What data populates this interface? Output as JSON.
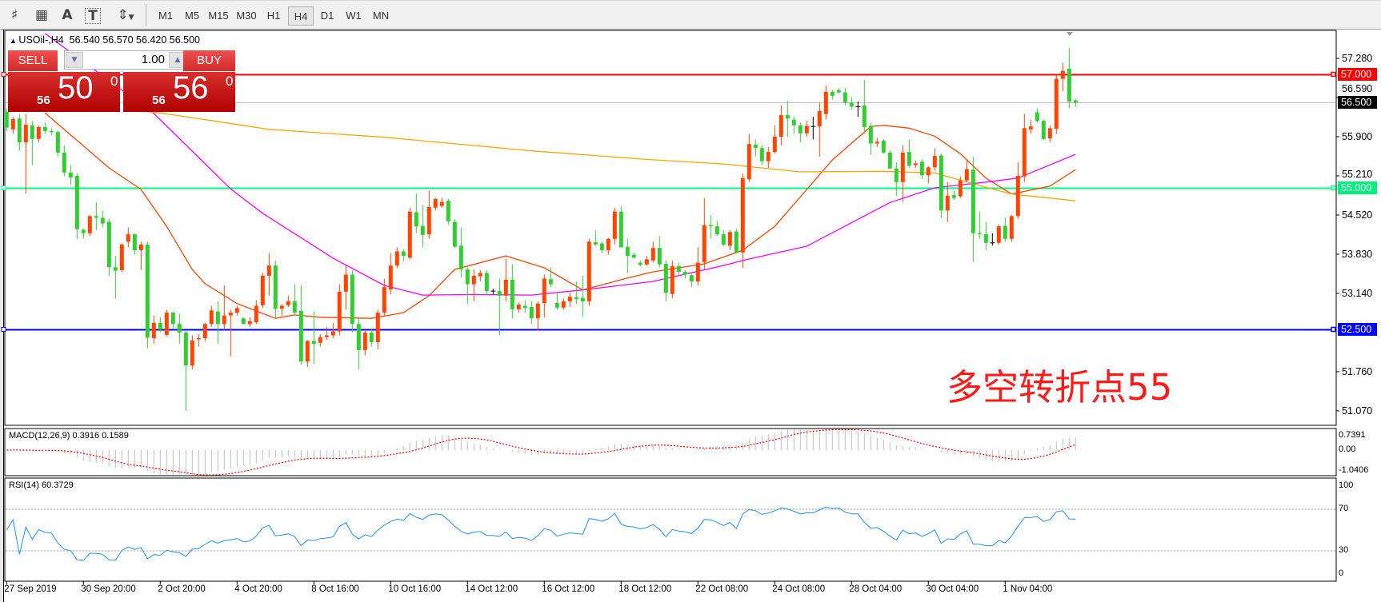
{
  "toolbar": {
    "icons": [
      "chart-lines-icon",
      "grid-icon",
      "text-icon",
      "text-label-icon",
      "arrows-icon"
    ],
    "icon_glyphs": [
      "♯",
      "▦",
      "A",
      "T",
      "⇕"
    ],
    "timeframes": [
      "M1",
      "M5",
      "M15",
      "M30",
      "H1",
      "H4",
      "D1",
      "W1",
      "MN"
    ],
    "active_timeframe": "H4"
  },
  "chart_title": "USOil-,H4  56.540 56.570 56.420 56.500",
  "trade_panel": {
    "sell_label": "SELL",
    "buy_label": "BUY",
    "lot": "1.00",
    "sell_price": {
      "small": "56",
      "big": "50",
      "sup": "0"
    },
    "buy_price": {
      "small": "56",
      "big": "56",
      "sup": "0"
    }
  },
  "annotation": "多空转折点55",
  "chart_data": {
    "type": "candlestick",
    "symbol": "USOil-",
    "timeframe": "H4",
    "ohlc_last": {
      "open": 56.54,
      "high": 56.57,
      "low": 56.42,
      "close": 56.5
    },
    "ylim": [
      50.9,
      57.75
    ],
    "y_ticks": [
      "57.280",
      "56.590",
      "55.900",
      "55.210",
      "54.520",
      "53.830",
      "53.140",
      "51.760",
      "51.070"
    ],
    "x_ticks": [
      "27 Sep 2019",
      "30 Sep 20:00",
      "2 Oct 20:00",
      "4 Oct 20:00",
      "8 Oct 16:00",
      "10 Oct 16:00",
      "14 Oct 12:00",
      "16 Oct 12:00",
      "18 Oct 12:00",
      "22 Oct 08:00",
      "24 Oct 08:00",
      "28 Oct 04:00",
      "30 Oct 04:00",
      "1 Nov 04:00"
    ],
    "x_tick_every_bars": 12,
    "colors": {
      "up": "#ff4500",
      "down": "#32cd32",
      "doji": "#000000"
    },
    "horizontal_lines": [
      {
        "value": 57.0,
        "label": "57.000",
        "color": "#ff0000"
      },
      {
        "value": 56.5,
        "label": "56.500",
        "color": "#000000",
        "line_color": "#c0c0c0"
      },
      {
        "value": 55.0,
        "label": "55.000",
        "color": "#00ff7f"
      },
      {
        "value": 52.5,
        "label": "52.500",
        "color": "#0000ff"
      }
    ],
    "candles": [
      [
        56.34,
        56.4,
        56.0,
        56.06
      ],
      [
        56.03,
        56.25,
        55.95,
        56.21
      ],
      [
        56.22,
        56.3,
        55.65,
        55.8
      ],
      [
        55.8,
        56.3,
        54.9,
        56.11
      ],
      [
        56.1,
        56.18,
        55.4,
        55.86
      ],
      [
        55.86,
        56.1,
        55.8,
        56.07
      ],
      [
        56.07,
        56.15,
        55.95,
        56.0
      ],
      [
        56.0,
        56.05,
        55.92,
        55.98
      ],
      [
        55.98,
        56.0,
        55.55,
        55.62
      ],
      [
        55.62,
        55.75,
        55.2,
        55.27
      ],
      [
        55.27,
        55.4,
        55.05,
        55.18
      ],
      [
        55.21,
        55.25,
        54.1,
        54.27
      ],
      [
        54.26,
        54.28,
        54.1,
        54.2
      ],
      [
        54.2,
        54.52,
        54.15,
        54.5
      ],
      [
        54.5,
        54.75,
        54.25,
        54.47
      ],
      [
        54.47,
        54.6,
        54.3,
        54.37
      ],
      [
        54.4,
        54.45,
        53.45,
        53.6
      ],
      [
        53.6,
        53.8,
        53.05,
        53.54
      ],
      [
        53.55,
        54.02,
        53.52,
        54.0
      ],
      [
        54.05,
        54.3,
        53.95,
        54.18
      ],
      [
        54.18,
        54.2,
        53.82,
        53.9
      ],
      [
        53.9,
        54.05,
        53.55,
        54.0
      ],
      [
        54.0,
        54.05,
        52.17,
        52.36
      ],
      [
        52.35,
        52.75,
        52.25,
        52.62
      ],
      [
        52.62,
        52.72,
        52.45,
        52.5
      ],
      [
        52.41,
        52.85,
        52.38,
        52.8
      ],
      [
        52.8,
        52.82,
        52.5,
        52.6
      ],
      [
        52.6,
        52.78,
        52.25,
        52.45
      ],
      [
        52.45,
        52.48,
        51.07,
        51.87
      ],
      [
        51.87,
        52.4,
        51.8,
        52.31
      ],
      [
        52.33,
        52.42,
        52.2,
        52.35
      ],
      [
        52.35,
        52.62,
        52.3,
        52.6
      ],
      [
        52.6,
        52.92,
        52.55,
        52.84
      ],
      [
        52.82,
        53.0,
        52.25,
        52.6
      ],
      [
        52.6,
        53.28,
        52.5,
        52.75
      ],
      [
        52.75,
        52.85,
        52.03,
        52.8
      ],
      [
        52.8,
        52.92,
        52.75,
        52.88
      ],
      [
        52.7,
        52.72,
        52.6,
        52.6
      ],
      [
        52.6,
        52.72,
        52.55,
        52.65
      ],
      [
        52.63,
        53.02,
        52.6,
        52.92
      ],
      [
        52.93,
        53.5,
        52.88,
        53.45
      ],
      [
        53.45,
        53.85,
        53.1,
        53.63
      ],
      [
        53.63,
        53.72,
        52.7,
        52.87
      ],
      [
        52.87,
        52.95,
        52.75,
        52.92
      ],
      [
        52.93,
        53.1,
        52.9,
        53.0
      ],
      [
        53.0,
        53.3,
        52.75,
        52.8
      ],
      [
        52.83,
        53.28,
        51.88,
        51.94
      ],
      [
        51.94,
        52.32,
        51.84,
        52.3
      ],
      [
        52.3,
        52.82,
        51.9,
        52.25
      ],
      [
        52.27,
        52.42,
        52.2,
        52.37
      ],
      [
        52.37,
        52.55,
        52.32,
        52.4
      ],
      [
        52.4,
        52.62,
        52.35,
        52.47
      ],
      [
        52.47,
        53.3,
        52.4,
        53.17
      ],
      [
        53.17,
        53.65,
        52.85,
        53.47
      ],
      [
        53.47,
        53.55,
        52.45,
        52.6
      ],
      [
        52.6,
        52.7,
        51.8,
        52.14
      ],
      [
        52.14,
        52.5,
        52.05,
        52.45
      ],
      [
        52.45,
        52.52,
        52.2,
        52.28
      ],
      [
        52.28,
        52.85,
        52.15,
        52.8
      ],
      [
        52.8,
        53.4,
        52.75,
        53.25
      ],
      [
        53.21,
        53.85,
        53.12,
        53.63
      ],
      [
        53.63,
        53.95,
        53.58,
        53.88
      ],
      [
        53.88,
        53.92,
        53.7,
        53.8
      ],
      [
        53.77,
        54.65,
        53.74,
        54.58
      ],
      [
        54.57,
        54.9,
        54.2,
        54.32
      ],
      [
        54.33,
        54.7,
        53.95,
        54.17
      ],
      [
        54.18,
        54.95,
        54.1,
        54.66
      ],
      [
        54.65,
        54.82,
        54.6,
        54.8
      ],
      [
        54.68,
        54.82,
        54.65,
        54.75
      ],
      [
        54.77,
        54.8,
        54.35,
        54.41
      ],
      [
        54.4,
        54.45,
        53.94,
        53.96
      ],
      [
        53.98,
        54.3,
        53.42,
        53.56
      ],
      [
        53.56,
        53.6,
        52.95,
        53.3
      ],
      [
        53.3,
        53.56,
        53.0,
        53.45
      ],
      [
        53.44,
        53.55,
        53.35,
        53.5
      ],
      [
        53.5,
        53.55,
        53.1,
        53.18
      ],
      [
        53.18,
        53.22,
        53.12,
        53.18
      ],
      [
        53.18,
        53.4,
        52.4,
        53.1
      ],
      [
        53.1,
        53.75,
        53.0,
        53.38
      ],
      [
        53.38,
        53.65,
        52.7,
        52.86
      ],
      [
        52.86,
        52.98,
        52.8,
        52.94
      ],
      [
        52.92,
        53.02,
        52.8,
        52.88
      ],
      [
        52.9,
        53.0,
        52.6,
        52.7
      ],
      [
        52.7,
        53.0,
        52.48,
        52.96
      ],
      [
        52.97,
        53.47,
        52.72,
        53.4
      ],
      [
        53.39,
        53.6,
        53.25,
        53.3
      ],
      [
        52.97,
        53.15,
        52.85,
        52.89
      ],
      [
        52.89,
        53.05,
        52.85,
        53.0
      ],
      [
        53.0,
        53.15,
        52.9,
        53.08
      ],
      [
        53.07,
        53.35,
        52.95,
        53.04
      ],
      [
        53.06,
        53.45,
        52.73,
        53.0
      ],
      [
        53.0,
        54.1,
        52.92,
        54.05
      ],
      [
        54.04,
        54.25,
        53.98,
        54.0
      ],
      [
        54.02,
        54.05,
        53.85,
        53.9
      ],
      [
        53.9,
        54.12,
        53.82,
        54.1
      ],
      [
        54.1,
        54.65,
        54.0,
        54.58
      ],
      [
        54.58,
        54.68,
        53.95,
        53.95
      ],
      [
        53.96,
        54.1,
        53.5,
        53.8
      ],
      [
        53.82,
        53.86,
        53.75,
        53.77
      ],
      [
        53.68,
        53.72,
        53.62,
        53.64
      ],
      [
        53.65,
        53.8,
        53.62,
        53.74
      ],
      [
        53.72,
        54.05,
        53.68,
        53.94
      ],
      [
        53.94,
        54.15,
        53.6,
        53.65
      ],
      [
        53.66,
        53.72,
        53.0,
        53.15
      ],
      [
        53.13,
        53.72,
        53.05,
        53.62
      ],
      [
        53.62,
        53.68,
        53.45,
        53.52
      ],
      [
        53.52,
        53.55,
        53.4,
        53.47
      ],
      [
        53.46,
        53.5,
        53.25,
        53.35
      ],
      [
        53.35,
        53.95,
        53.28,
        53.68
      ],
      [
        53.69,
        54.82,
        53.55,
        54.34
      ],
      [
        54.34,
        54.52,
        54.1,
        54.32
      ],
      [
        54.32,
        54.42,
        54.15,
        54.18
      ],
      [
        54.18,
        54.25,
        53.97,
        54.0
      ],
      [
        53.98,
        54.25,
        53.9,
        54.22
      ],
      [
        54.23,
        54.28,
        53.85,
        53.86
      ],
      [
        53.86,
        55.25,
        53.59,
        55.17
      ],
      [
        55.15,
        55.95,
        55.1,
        55.77
      ],
      [
        55.76,
        55.85,
        55.55,
        55.7
      ],
      [
        55.7,
        55.75,
        55.4,
        55.47
      ],
      [
        55.47,
        55.72,
        55.35,
        55.63
      ],
      [
        55.63,
        56.1,
        55.6,
        55.9
      ],
      [
        55.9,
        56.45,
        55.75,
        56.28
      ],
      [
        56.28,
        56.53,
        55.9,
        56.22
      ],
      [
        56.2,
        56.25,
        55.95,
        56.1
      ],
      [
        56.1,
        56.15,
        55.8,
        55.96
      ],
      [
        55.96,
        56.18,
        55.9,
        56.09
      ],
      [
        56.08,
        56.25,
        55.85,
        56.08
      ],
      [
        56.08,
        56.5,
        55.55,
        56.35
      ],
      [
        56.3,
        56.8,
        56.2,
        56.69
      ],
      [
        56.69,
        56.72,
        56.55,
        56.62
      ],
      [
        56.72,
        56.76,
        56.66,
        56.68
      ],
      [
        56.68,
        56.76,
        56.45,
        56.5
      ],
      [
        56.5,
        56.6,
        56.38,
        56.43
      ],
      [
        56.43,
        56.52,
        56.25,
        56.43
      ],
      [
        56.45,
        56.9,
        55.95,
        56.07
      ],
      [
        56.09,
        56.15,
        55.58,
        55.78
      ],
      [
        55.78,
        55.88,
        55.72,
        55.81
      ],
      [
        55.83,
        55.86,
        55.6,
        55.62
      ],
      [
        55.62,
        55.65,
        55.34,
        55.34
      ],
      [
        55.34,
        55.45,
        54.85,
        55.1
      ],
      [
        55.1,
        55.75,
        54.75,
        55.62
      ],
      [
        55.63,
        55.85,
        55.35,
        55.39
      ],
      [
        55.4,
        55.48,
        55.35,
        55.43
      ],
      [
        55.46,
        55.5,
        55.15,
        55.22
      ],
      [
        55.22,
        55.38,
        55.08,
        55.36
      ],
      [
        55.36,
        55.7,
        55.3,
        55.56
      ],
      [
        55.57,
        55.6,
        54.46,
        54.6
      ],
      [
        54.6,
        55.1,
        54.4,
        54.86
      ],
      [
        54.87,
        54.95,
        54.78,
        54.82
      ],
      [
        54.85,
        55.2,
        54.82,
        55.13
      ],
      [
        55.13,
        55.5,
        55.1,
        55.33
      ],
      [
        55.32,
        55.55,
        53.69,
        54.2
      ],
      [
        54.2,
        54.58,
        54.1,
        54.18
      ],
      [
        54.18,
        54.4,
        53.9,
        54.03
      ],
      [
        54.03,
        54.2,
        53.98,
        54.03
      ],
      [
        54.03,
        54.35,
        54.0,
        54.32
      ],
      [
        54.33,
        54.48,
        54.05,
        54.1
      ],
      [
        54.1,
        54.52,
        54.05,
        54.5
      ],
      [
        54.5,
        55.45,
        54.45,
        55.21
      ],
      [
        55.2,
        56.3,
        55.1,
        56.05
      ],
      [
        56.03,
        56.2,
        55.95,
        56.08
      ],
      [
        56.33,
        56.4,
        56.15,
        56.18
      ],
      [
        56.18,
        56.2,
        55.84,
        55.86
      ],
      [
        55.87,
        56.1,
        55.8,
        56.05
      ],
      [
        56.04,
        57.0,
        55.95,
        56.92
      ],
      [
        56.92,
        57.2,
        56.7,
        57.06
      ],
      [
        57.1,
        57.46,
        56.4,
        56.52
      ],
      [
        56.54,
        56.57,
        56.42,
        56.5
      ]
    ],
    "moving_averages": [
      {
        "color": "#ff4500",
        "points": [
          [
            6,
            56.32
          ],
          [
            16,
            55.35
          ],
          [
            21,
            54.97
          ],
          [
            25,
            54.32
          ],
          [
            29,
            53.56
          ],
          [
            31,
            53.31
          ],
          [
            36,
            52.96
          ],
          [
            42,
            52.7
          ],
          [
            45,
            52.76
          ],
          [
            49,
            52.72
          ],
          [
            57,
            52.7
          ],
          [
            62,
            52.8
          ],
          [
            66,
            53.1
          ],
          [
            70,
            53.56
          ],
          [
            78,
            53.8
          ],
          [
            84,
            53.59
          ],
          [
            90,
            53.2
          ],
          [
            97,
            53.41
          ],
          [
            101,
            53.52
          ],
          [
            109,
            53.66
          ],
          [
            115,
            53.9
          ],
          [
            120,
            54.32
          ],
          [
            125,
            54.97
          ],
          [
            129,
            55.49
          ],
          [
            135,
            56.08
          ],
          [
            137,
            56.1
          ],
          [
            141,
            56.05
          ],
          [
            145,
            55.91
          ],
          [
            149,
            55.6
          ],
          [
            153,
            55.17
          ],
          [
            157,
            54.89
          ],
          [
            163,
            55.03
          ],
          [
            167,
            55.32
          ]
        ]
      },
      {
        "color": "#ff00ff",
        "points": [
          [
            6,
            57.72
          ],
          [
            23,
            56.31
          ],
          [
            35,
            54.98
          ],
          [
            40,
            54.55
          ],
          [
            51,
            53.76
          ],
          [
            59,
            53.28
          ],
          [
            65,
            53.11
          ],
          [
            73,
            53.12
          ],
          [
            82,
            53.11
          ],
          [
            90,
            53.2
          ],
          [
            101,
            53.35
          ],
          [
            112,
            53.63
          ],
          [
            115,
            53.72
          ],
          [
            125,
            53.97
          ],
          [
            138,
            54.74
          ],
          [
            145,
            55.0
          ],
          [
            153,
            55.1
          ],
          [
            158,
            55.17
          ],
          [
            167,
            55.59
          ]
        ]
      },
      {
        "color": "#ffa500",
        "points": [
          [
            21,
            56.35
          ],
          [
            24,
            56.32
          ],
          [
            41,
            56.03
          ],
          [
            59,
            55.89
          ],
          [
            82,
            55.65
          ],
          [
            100,
            55.5
          ],
          [
            112,
            55.42
          ],
          [
            124,
            55.28
          ],
          [
            137,
            55.29
          ],
          [
            145,
            55.26
          ],
          [
            151,
            55.07
          ],
          [
            157,
            54.89
          ],
          [
            167,
            54.77
          ]
        ]
      }
    ],
    "macd": {
      "label": "MACD(12,26,9) 0.3916 0.1589",
      "axis_labels": [
        "0.7391",
        "0.00",
        "-1.0406"
      ],
      "range": [
        -1.0406,
        0.7391
      ],
      "histogram_color": "#c0c0c0",
      "signal_color": "#ff0000"
    },
    "rsi": {
      "label": "RSI(14) 60.3729",
      "axis_labels": [
        "100",
        "70",
        "30",
        "0"
      ],
      "levels": [
        70,
        30
      ],
      "range": [
        0,
        100
      ],
      "color": "#1e90ff"
    }
  }
}
